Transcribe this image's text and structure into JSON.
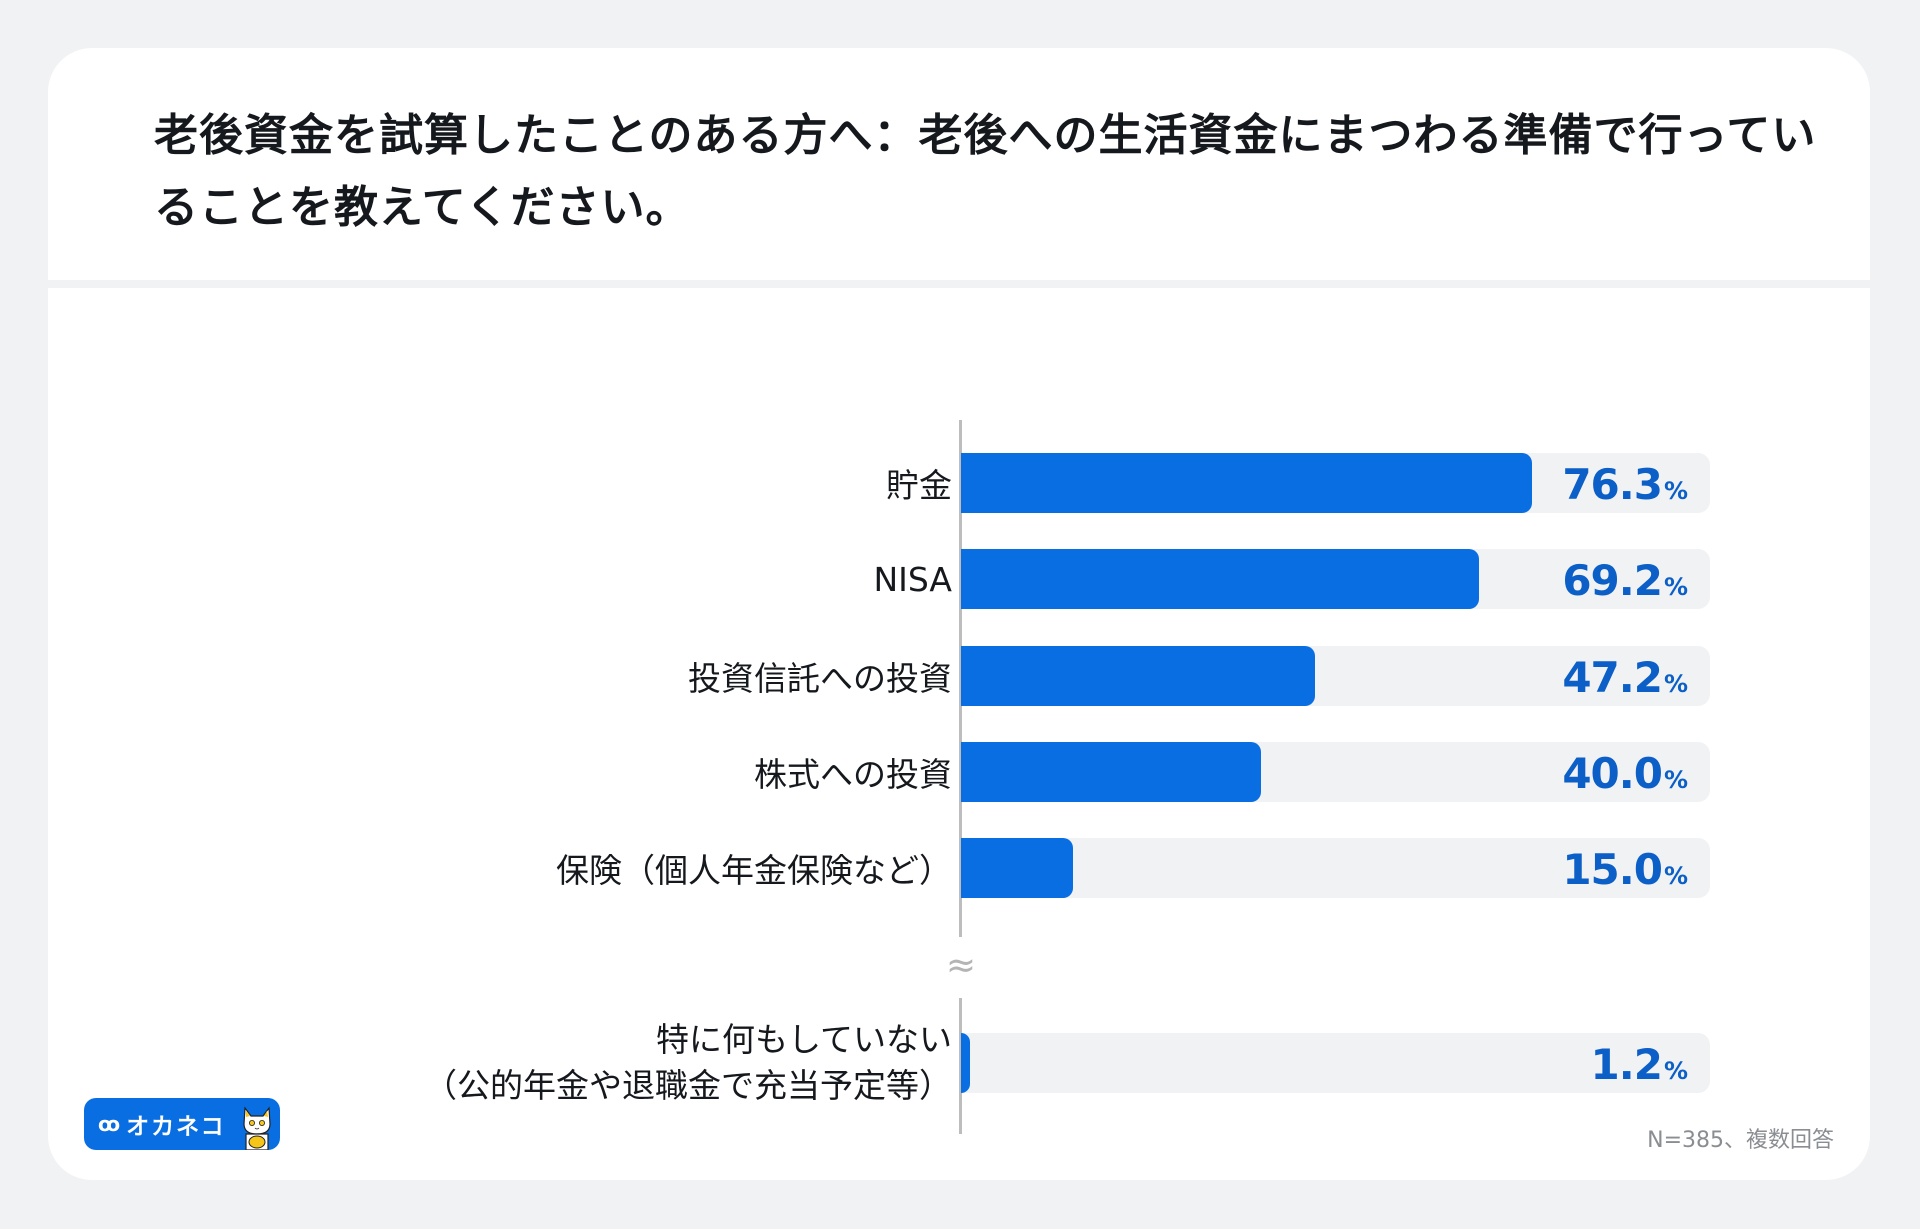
{
  "header": {
    "title": "老後資金を試算したことのある方へ：老後への生活資金にまつわる準備で行っていることを教えてください。"
  },
  "chart_data": {
    "type": "bar",
    "orientation": "horizontal",
    "title": "老後資金を試算したことのある方へ：老後への生活資金にまつわる準備で行っていることを教えてください。",
    "xlabel": "",
    "ylabel": "",
    "xlim": [
      0,
      100
    ],
    "unit": "%",
    "grid": false,
    "axis_break_before_last": true,
    "categories": [
      "貯金",
      "NISA",
      "投資信託への投資",
      "株式への投資",
      "保険（個人年金保険など）",
      "特に何もしていない（公的年金や退職金で充当予定等）"
    ],
    "values": [
      76.3,
      69.2,
      47.2,
      40.0,
      15.0,
      1.2
    ],
    "bar_color": "#0a6ee3",
    "track_color": "#f1f2f4",
    "value_color": "#0b5fc6"
  },
  "rows": [
    {
      "label": "貯金",
      "value": "76.3",
      "pct": "%",
      "width": "76.3%"
    },
    {
      "label": "NISA",
      "value": "69.2",
      "pct": "%",
      "width": "69.2%"
    },
    {
      "label": "投資信託への投資",
      "value": "47.2",
      "pct": "%",
      "width": "47.2%"
    },
    {
      "label": "株式への投資",
      "value": "40.0",
      "pct": "%",
      "width": "40.0%"
    },
    {
      "label": "保険（個人年金保険など）",
      "value": "15.0",
      "pct": "%",
      "width": "15.0%"
    },
    {
      "label_line1": "特に何もしていない",
      "label_line2": "（公的年金や退職金で充当予定等）",
      "value": "1.2",
      "pct": "%",
      "width": "1.2%"
    }
  ],
  "axis_break_symbol": "≈",
  "footer": {
    "logo_text": "オカネコ",
    "logo_glasses": "ꝏ",
    "note": "N=385、複数回答"
  }
}
